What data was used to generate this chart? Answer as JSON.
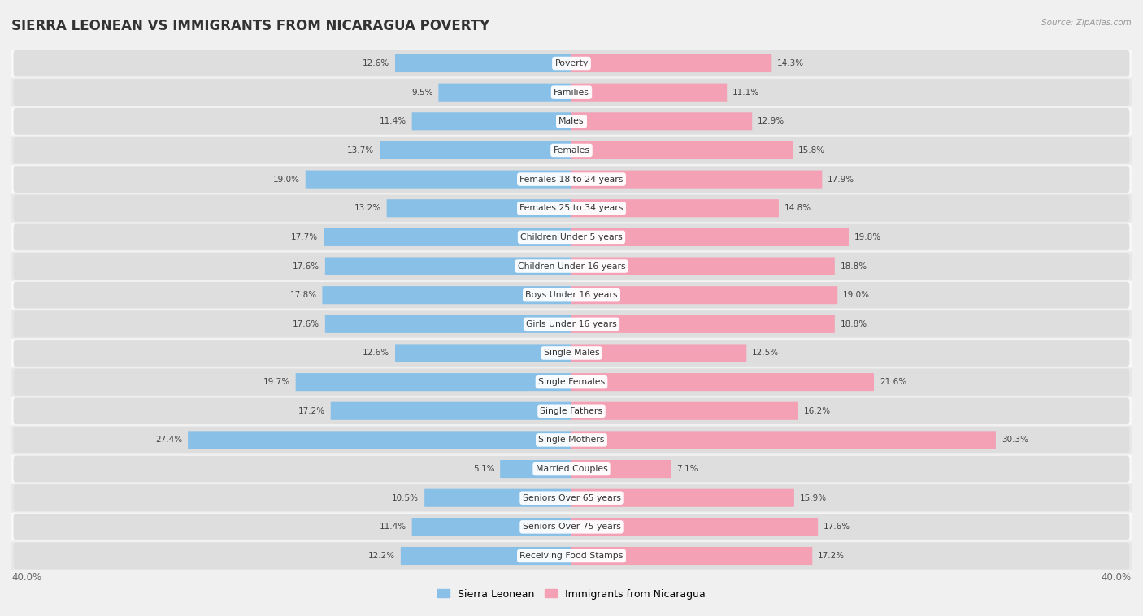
{
  "title": "SIERRA LEONEAN VS IMMIGRANTS FROM NICARAGUA POVERTY",
  "source": "Source: ZipAtlas.com",
  "categories": [
    "Poverty",
    "Families",
    "Males",
    "Females",
    "Females 18 to 24 years",
    "Females 25 to 34 years",
    "Children Under 5 years",
    "Children Under 16 years",
    "Boys Under 16 years",
    "Girls Under 16 years",
    "Single Males",
    "Single Females",
    "Single Fathers",
    "Single Mothers",
    "Married Couples",
    "Seniors Over 65 years",
    "Seniors Over 75 years",
    "Receiving Food Stamps"
  ],
  "sierra_leonean": [
    12.6,
    9.5,
    11.4,
    13.7,
    19.0,
    13.2,
    17.7,
    17.6,
    17.8,
    17.6,
    12.6,
    19.7,
    17.2,
    27.4,
    5.1,
    10.5,
    11.4,
    12.2
  ],
  "nicaragua": [
    14.3,
    11.1,
    12.9,
    15.8,
    17.9,
    14.8,
    19.8,
    18.8,
    19.0,
    18.8,
    12.5,
    21.6,
    16.2,
    30.3,
    7.1,
    15.9,
    17.6,
    17.2
  ],
  "sl_color": "#88C0E8",
  "nic_color": "#F4A0B5",
  "background_color": "#f0f0f0",
  "row_color_odd": "#e8e8e8",
  "row_color_even": "#f8f8f8",
  "bar_bg_color": "#d8d8d8",
  "max_val": 40.0,
  "legend_sl": "Sierra Leonean",
  "legend_nic": "Immigrants from Nicaragua"
}
